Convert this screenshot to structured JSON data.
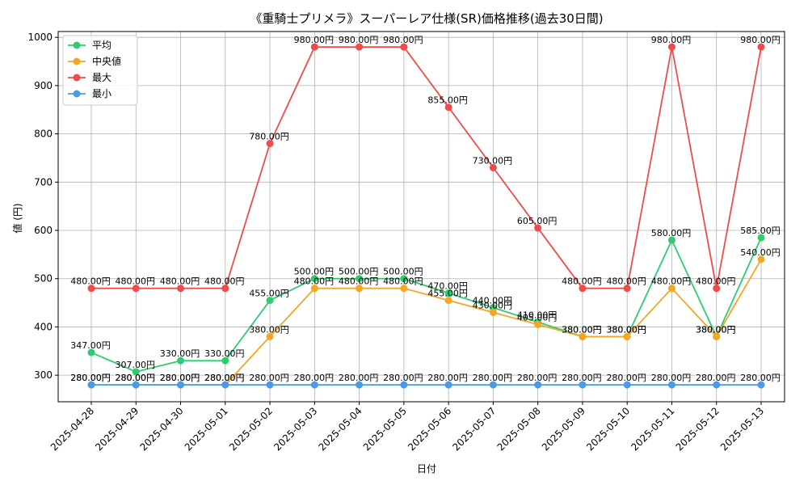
{
  "chart_data": {
    "type": "line",
    "title": "《重騎士プリメラ》スーパーレア仕様(SR)価格推移(過去30日間)",
    "xlabel": "日付",
    "ylabel": "値 (円)",
    "ylim": [
      245,
      1012
    ],
    "yticks": [
      300,
      400,
      500,
      600,
      700,
      800,
      900,
      1000
    ],
    "grid": true,
    "legend_position": "top-left",
    "categories": [
      "2025-04-28",
      "2025-04-29",
      "2025-04-30",
      "2025-05-01",
      "2025-05-02",
      "2025-05-03",
      "2025-05-04",
      "2025-05-05",
      "2025-05-06",
      "2025-05-07",
      "2025-05-08",
      "2025-05-09",
      "2025-05-10",
      "2025-05-11",
      "2025-05-12",
      "2025-05-13"
    ],
    "label_suffix": "円",
    "series": [
      {
        "name": "平均",
        "color": "#2ecc71",
        "values": [
          347,
          307,
          330,
          330,
          455,
          500,
          500,
          500,
          470,
          440,
          410,
          380,
          380,
          580,
          380,
          585
        ]
      },
      {
        "name": "中央値",
        "color": "#f5a623",
        "values": [
          280,
          280,
          280,
          280,
          380,
          480,
          480,
          480,
          455,
          430,
          405,
          380,
          380,
          480,
          380,
          540
        ]
      },
      {
        "name": "最大",
        "color": "#ef4b4b",
        "values": [
          480,
          480,
          480,
          480,
          780,
          980,
          980,
          980,
          855,
          730,
          605,
          480,
          480,
          980,
          480,
          980
        ]
      },
      {
        "name": "最小",
        "color": "#4a9ae8",
        "values": [
          280,
          280,
          280,
          280,
          280,
          280,
          280,
          280,
          280,
          280,
          280,
          280,
          280,
          280,
          280,
          280
        ]
      }
    ]
  }
}
